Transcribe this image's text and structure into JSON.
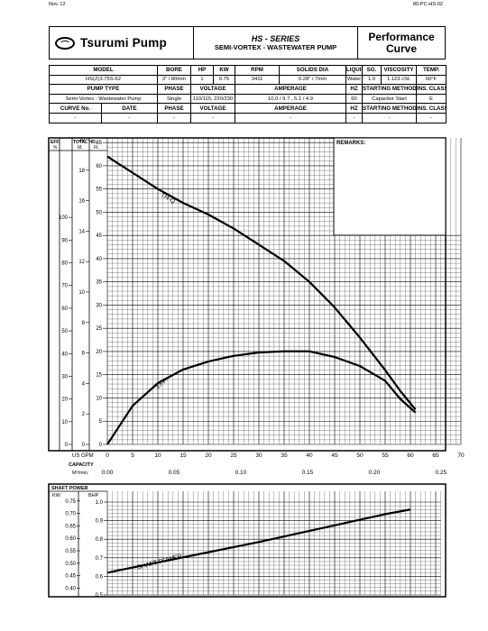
{
  "corner_left": "Nov. 12",
  "corner_right": "80-PC-HS-02",
  "header": {
    "brand": "Tsurumi Pump",
    "series": "HS - SERIES",
    "subtitle": "SEMI-VORTEX - WASTEWATER PUMP",
    "title_line1": "Performance",
    "title_line2": "Curve"
  },
  "spec_table": {
    "row1_headers": [
      "MODEL",
      "BORE",
      "HP",
      "KW",
      "RPM",
      "SOLIDS DIA",
      "LIQUID",
      "SG.",
      "VISCOSITY",
      "TEMP."
    ],
    "row1_values": [
      "HS(Z)3.75S-62",
      "3\" / 80mm",
      "1",
      "0.75",
      "3411",
      "0.28\" / 7mm",
      "Water",
      "1.0",
      "1.123 cSt.",
      "60°F"
    ],
    "row2_headers": [
      "PUMP TYPE",
      "PHASE",
      "VOLTAGE",
      "AMPERAGE",
      "HZ",
      "STARTING METHOD",
      "INS. CLASS"
    ],
    "row2_values": [
      "Semi-Vortex - Wastewater Pump",
      "Single",
      "110/115, 220/230",
      "10.0 / 9.7 , 5.1 / 4.9",
      "60",
      "Capacitor Start",
      "E"
    ],
    "row3_headers": [
      "CURVE No.",
      "DATE",
      "PHASE",
      "VOLTAGE",
      "AMPERAGE",
      "HZ",
      "STARTING METHOD",
      "INS. CLASS"
    ],
    "row3_values": [
      "-",
      "-",
      "-",
      "-",
      "-",
      "-",
      "-",
      "-"
    ]
  },
  "chart_data": [
    {
      "type": "line",
      "title": "",
      "remarks_label": "REMARKS:",
      "eff_axis": {
        "header": "EFF.",
        "unit": "%",
        "ticks": [
          "0",
          "10",
          "20",
          "30",
          "40",
          "50",
          "60",
          "70",
          "80",
          "90",
          "100"
        ],
        "ylim": [
          0,
          100
        ]
      },
      "head_m_axis": {
        "header": "TOTAL HD.",
        "unit": "M.",
        "ticks": [
          "0",
          "2",
          "4",
          "6",
          "8",
          "10",
          "12",
          "14",
          "16",
          "18",
          "20"
        ],
        "ylim": [
          0,
          20
        ]
      },
      "head_ft_axis": {
        "unit": "Ft.",
        "ticks": [
          "0",
          "5",
          "10",
          "15",
          "20",
          "25",
          "30",
          "35",
          "40",
          "45",
          "50",
          "55",
          "60",
          "65"
        ],
        "ylim": [
          0,
          66
        ]
      },
      "x_axis": {
        "label": "US GPM",
        "ticks": [
          "0",
          "5",
          "10",
          "15",
          "20",
          "25",
          "30",
          "35",
          "40",
          "45",
          "50",
          "55",
          "60",
          "65",
          "70"
        ],
        "xlim": [
          0,
          70
        ]
      },
      "capacity": {
        "label": "CAPACITY",
        "unit": "M³/min.",
        "ticks": [
          "0.00",
          "0.05",
          "0.10",
          "0.15",
          "0.20",
          "0.25"
        ]
      },
      "series": [
        {
          "name": "TH-Q",
          "axis": "ft",
          "x": [
            0,
            5,
            10,
            15,
            20,
            25,
            30,
            35,
            40,
            45,
            50,
            55,
            58,
            61
          ],
          "y": [
            62,
            58.5,
            55,
            52,
            49.5,
            46.5,
            43,
            39.5,
            35,
            29.5,
            23,
            16,
            11.5,
            7.5
          ]
        },
        {
          "name": "EFF.",
          "axis": "pct",
          "x": [
            0,
            5,
            10,
            15,
            20,
            25,
            30,
            35,
            40,
            45,
            50,
            55,
            58,
            61
          ],
          "y": [
            0,
            17,
            27,
            33,
            36.5,
            39,
            40.5,
            41,
            41,
            38.5,
            34.5,
            28,
            20,
            14
          ]
        }
      ]
    },
    {
      "type": "line",
      "title": "",
      "section_label": "SHAFT POWER",
      "kw_axis": {
        "unit": "KW",
        "ticks": [
          "0.40",
          "0.45",
          "0.50",
          "0.55",
          "0.60",
          "0.65",
          "0.70",
          "0.75"
        ],
        "ylim": [
          0.4,
          0.75
        ]
      },
      "bhp_axis": {
        "unit": "BHP",
        "ticks": [
          "0.5",
          "0.6",
          "0.7",
          "0.8",
          "0.9",
          "1.0"
        ],
        "ylim": [
          0.5,
          1.0
        ]
      },
      "x_axis": {
        "xlim": [
          0,
          70
        ]
      },
      "series": [
        {
          "name": "SHAFT POWER",
          "axis": "bhp",
          "x": [
            0,
            10,
            20,
            30,
            40,
            50,
            55,
            60
          ],
          "y": [
            0.62,
            0.675,
            0.73,
            0.785,
            0.845,
            0.905,
            0.935,
            0.96
          ]
        }
      ]
    }
  ]
}
